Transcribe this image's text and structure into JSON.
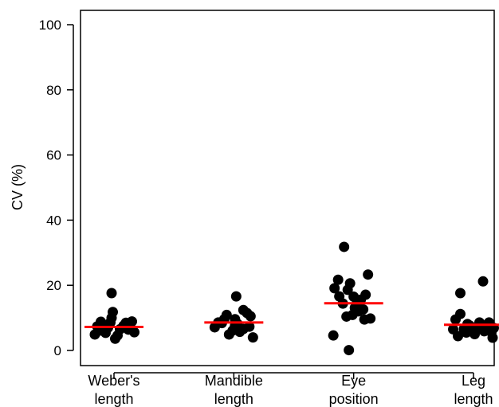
{
  "chart_data": {
    "type": "scatter",
    "title": "",
    "xlabel": "",
    "ylabel": "CV (%)",
    "ylim": [
      0,
      100
    ],
    "yticks": [
      "0",
      "20",
      "40",
      "60",
      "80",
      "100"
    ],
    "grid": false,
    "legend": "none",
    "point_color": "#000000",
    "mean_line_color": "#ff0000",
    "categories": [
      {
        "line1": "Weber's",
        "line2": "length"
      },
      {
        "line1": "Mandible",
        "line2": "length"
      },
      {
        "line1": "Eye",
        "line2": "position"
      },
      {
        "line1": "Leg",
        "line2": "length"
      }
    ],
    "means": [
      7.2,
      8.6,
      14.5,
      7.9
    ],
    "points": [
      [
        {
          "j": -0.16,
          "y": 4.9
        },
        {
          "j": -0.12,
          "y": 6.1
        },
        {
          "j": -0.14,
          "y": 7.4
        },
        {
          "j": -0.11,
          "y": 8.8
        },
        {
          "j": -0.07,
          "y": 5.4
        },
        {
          "j": -0.05,
          "y": 7.0
        },
        {
          "j": -0.03,
          "y": 8.6
        },
        {
          "j": -0.02,
          "y": 10.0
        },
        {
          "j": -0.01,
          "y": 11.8
        },
        {
          "j": -0.02,
          "y": 17.6
        },
        {
          "j": 0.01,
          "y": 3.6
        },
        {
          "j": 0.03,
          "y": 4.6
        },
        {
          "j": 0.05,
          "y": 6.5
        },
        {
          "j": 0.08,
          "y": 7.6
        },
        {
          "j": 0.1,
          "y": 8.5
        },
        {
          "j": 0.13,
          "y": 7.1
        },
        {
          "j": 0.15,
          "y": 8.9
        },
        {
          "j": 0.17,
          "y": 5.6
        },
        {
          "j": 0.12,
          "y": 6.4
        },
        {
          "j": -0.09,
          "y": 6.6
        }
      ],
      [
        {
          "j": -0.16,
          "y": 7.1
        },
        {
          "j": -0.13,
          "y": 8.6
        },
        {
          "j": -0.1,
          "y": 8.4
        },
        {
          "j": -0.08,
          "y": 9.6
        },
        {
          "j": -0.06,
          "y": 10.9
        },
        {
          "j": -0.04,
          "y": 4.9
        },
        {
          "j": -0.01,
          "y": 6.1
        },
        {
          "j": 0.01,
          "y": 7.6
        },
        {
          "j": 0.01,
          "y": 9.6
        },
        {
          "j": 0.02,
          "y": 16.6
        },
        {
          "j": 0.05,
          "y": 5.7
        },
        {
          "j": 0.08,
          "y": 6.6
        },
        {
          "j": 0.08,
          "y": 12.4
        },
        {
          "j": 0.11,
          "y": 11.5
        },
        {
          "j": 0.13,
          "y": 7.3
        },
        {
          "j": 0.14,
          "y": 10.5
        },
        {
          "j": 0.16,
          "y": 4.0
        },
        {
          "j": 0.03,
          "y": 8.2
        }
      ],
      [
        {
          "j": -0.17,
          "y": 4.6
        },
        {
          "j": -0.16,
          "y": 19.1
        },
        {
          "j": -0.13,
          "y": 21.7
        },
        {
          "j": -0.12,
          "y": 16.6
        },
        {
          "j": -0.09,
          "y": 14.4
        },
        {
          "j": -0.08,
          "y": 31.8
        },
        {
          "j": -0.06,
          "y": 10.4
        },
        {
          "j": -0.05,
          "y": 18.6
        },
        {
          "j": -0.03,
          "y": 20.6
        },
        {
          "j": -0.01,
          "y": 10.9
        },
        {
          "j": -0.04,
          "y": 0.1
        },
        {
          "j": 0.01,
          "y": 13.1
        },
        {
          "j": 0.03,
          "y": 14.6
        },
        {
          "j": 0.04,
          "y": 12.0
        },
        {
          "j": 0.06,
          "y": 15.6
        },
        {
          "j": 0.08,
          "y": 12.6
        },
        {
          "j": 0.1,
          "y": 17.1
        },
        {
          "j": 0.12,
          "y": 23.3
        },
        {
          "j": 0.09,
          "y": 9.5
        },
        {
          "j": 0.14,
          "y": 9.8
        },
        {
          "j": 0.0,
          "y": 16.5
        }
      ],
      [
        {
          "j": -0.17,
          "y": 6.5
        },
        {
          "j": -0.15,
          "y": 9.5
        },
        {
          "j": -0.13,
          "y": 4.4
        },
        {
          "j": -0.11,
          "y": 11.2
        },
        {
          "j": -0.11,
          "y": 17.6
        },
        {
          "j": -0.08,
          "y": 6.6
        },
        {
          "j": -0.06,
          "y": 5.5
        },
        {
          "j": -0.03,
          "y": 7.6
        },
        {
          "j": -0.01,
          "y": 6.2
        },
        {
          "j": 0.01,
          "y": 5.0
        },
        {
          "j": 0.03,
          "y": 7.0
        },
        {
          "j": 0.05,
          "y": 8.6
        },
        {
          "j": 0.08,
          "y": 21.2
        },
        {
          "j": 0.09,
          "y": 5.9
        },
        {
          "j": 0.11,
          "y": 7.6
        },
        {
          "j": 0.13,
          "y": 8.6
        },
        {
          "j": 0.15,
          "y": 5.6
        },
        {
          "j": 0.16,
          "y": 3.9
        },
        {
          "j": 0.17,
          "y": 6.9
        },
        {
          "j": -0.05,
          "y": 8.1
        }
      ]
    ]
  }
}
